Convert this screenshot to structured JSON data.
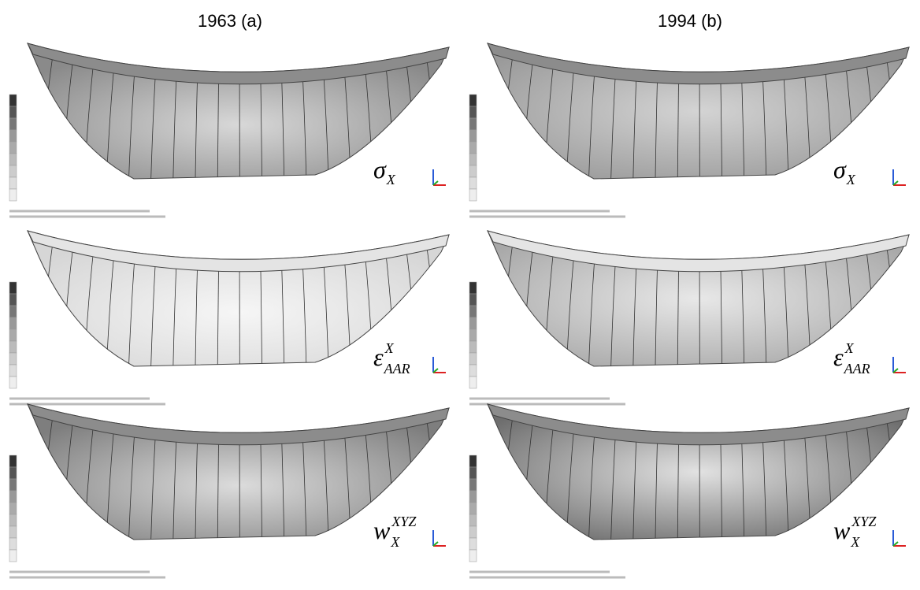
{
  "columns": [
    {
      "title": "1963 (a)"
    },
    {
      "title": "1994 (b)"
    }
  ],
  "rows": [
    {
      "symbol": "σ",
      "subscript": "X"
    },
    {
      "symbol": "ε",
      "superscript": "X",
      "subscript": "AAR"
    },
    {
      "symbol": "w",
      "superscript": "XYZ",
      "subscript": "X"
    }
  ]
}
